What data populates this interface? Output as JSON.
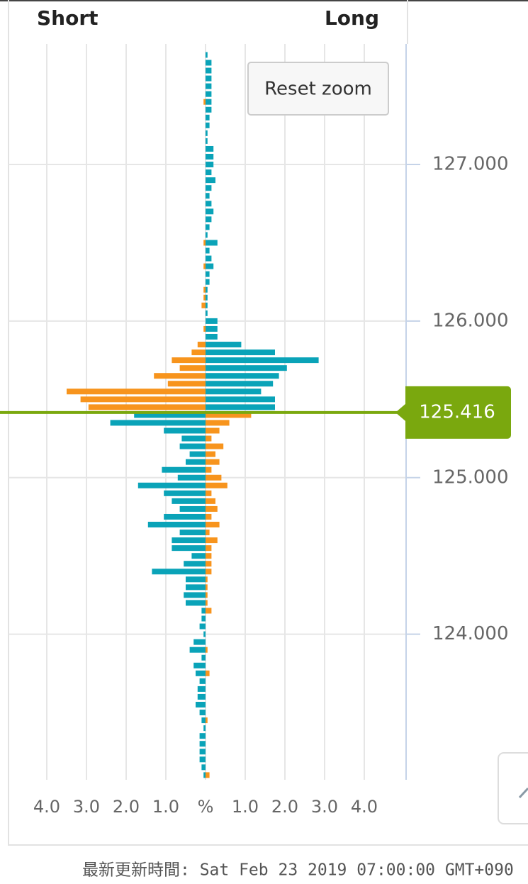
{
  "chart_data": {
    "type": "bar",
    "orientation": "horizontal",
    "left_label": "Short",
    "right_label": "Long",
    "button": "Reset zoom",
    "y": [
      127.7,
      127.65,
      127.6,
      127.55,
      127.5,
      127.45,
      127.4,
      127.35,
      127.3,
      127.25,
      127.2,
      127.15,
      127.1,
      127.05,
      127.0,
      126.95,
      126.9,
      126.85,
      126.8,
      126.75,
      126.7,
      126.65,
      126.6,
      126.55,
      126.5,
      126.45,
      126.4,
      126.35,
      126.3,
      126.25,
      126.2,
      126.15,
      126.1,
      126.05,
      126.0,
      125.95,
      125.9,
      125.85,
      125.8,
      125.75,
      125.7,
      125.65,
      125.6,
      125.55,
      125.5,
      125.45,
      125.4,
      125.35,
      125.3,
      125.25,
      125.2,
      125.15,
      125.1,
      125.05,
      125.0,
      124.95,
      124.9,
      124.85,
      124.8,
      124.75,
      124.7,
      124.65,
      124.6,
      124.55,
      124.5,
      124.45,
      124.4,
      124.35,
      124.3,
      124.25,
      124.2,
      124.15,
      124.1,
      124.05,
      124.0,
      123.95,
      123.9,
      123.85,
      123.8,
      123.75,
      123.7,
      123.65,
      123.6,
      123.55,
      123.5,
      123.45,
      123.4,
      123.35,
      123.3,
      123.25,
      123.2,
      123.15,
      123.1
    ],
    "series": [
      {
        "color": "#0aa3b8",
        "values": [
          0.05,
          0.15,
          0.15,
          0.15,
          0.15,
          0.15,
          0.15,
          0.15,
          0.1,
          0.1,
          0.05,
          0.05,
          0.2,
          0.2,
          0.2,
          0.15,
          0.25,
          0.15,
          0.1,
          0.15,
          0.2,
          0.15,
          0.1,
          0.05,
          0.3,
          0.1,
          0.15,
          0.2,
          0.1,
          0.1,
          0.05,
          0.05,
          0.05,
          0.05,
          0.3,
          0.3,
          0.3,
          0.9,
          1.75,
          2.85,
          2.05,
          1.85,
          1.7,
          1.4,
          1.75,
          1.75,
          -1.8,
          -2.4,
          -1.05,
          -0.6,
          -0.65,
          -0.4,
          -0.5,
          -1.1,
          -0.7,
          -1.7,
          -1.05,
          -0.85,
          -0.65,
          -1.05,
          -1.45,
          -0.65,
          -0.85,
          -0.85,
          -0.35,
          -0.55,
          -1.35,
          -0.5,
          -0.5,
          -0.55,
          -0.5,
          -0.1,
          -0.1,
          -0.15,
          -0.05,
          -0.3,
          -0.4,
          -0.1,
          -0.3,
          -0.25,
          -0.15,
          -0.2,
          -0.2,
          -0.25,
          -0.15,
          -0.1,
          -0.05,
          -0.15,
          -0.15,
          -0.15,
          -0.15,
          -0.1,
          -0.05
        ]
      },
      {
        "color": "#f7941d",
        "values": [
          0,
          0,
          0,
          0,
          0,
          0,
          -0.05,
          0,
          0,
          0,
          0,
          0,
          0,
          0,
          0,
          0,
          0,
          0,
          0,
          0,
          0,
          0,
          0,
          0,
          -0.05,
          0,
          0,
          -0.05,
          0,
          0,
          -0.05,
          -0.05,
          -0.1,
          0,
          0,
          -0.05,
          0,
          -0.2,
          -0.35,
          -0.85,
          -0.65,
          -1.3,
          -0.95,
          -3.5,
          -3.15,
          -2.95,
          1.15,
          0.6,
          0.35,
          0.15,
          0.45,
          0.25,
          0.35,
          0.15,
          0.4,
          0.55,
          0.15,
          0.25,
          0.3,
          0.15,
          0.35,
          0.1,
          0.3,
          0.15,
          0.15,
          0.15,
          0.15,
          0.05,
          0.05,
          0.05,
          0.05,
          0.15,
          0,
          0,
          0,
          0,
          0.05,
          0,
          0,
          0.1,
          0,
          0,
          0,
          0,
          0,
          0.05,
          0,
          0,
          0,
          0,
          0,
          0,
          0.1
        ]
      }
    ],
    "current_price": {
      "value": 125.416,
      "label": "125.416",
      "color": "#7aa80e"
    },
    "xlim": [
      -5.2,
      5.0
    ],
    "xticks": [
      {
        "value": -4,
        "label": "4.0"
      },
      {
        "value": -3,
        "label": "3.0"
      },
      {
        "value": -2,
        "label": "2.0"
      },
      {
        "value": -1,
        "label": "1.0"
      },
      {
        "value": 0,
        "label": "%"
      },
      {
        "value": 1,
        "label": "1.0"
      },
      {
        "value": 2,
        "label": "2.0"
      },
      {
        "value": 3,
        "label": "3.0"
      },
      {
        "value": 4,
        "label": "4.0"
      }
    ],
    "ylim": [
      123.07,
      127.77
    ],
    "yticks": [
      {
        "value": 124,
        "label": "124.000"
      },
      {
        "value": 125,
        "label": "125.000"
      },
      {
        "value": 126,
        "label": "126.000"
      },
      {
        "value": 127,
        "label": "127.000"
      }
    ],
    "grid": true,
    "footer": "最新更新時間: Sat Feb 23 2019 07:00:00 GMT+090"
  }
}
